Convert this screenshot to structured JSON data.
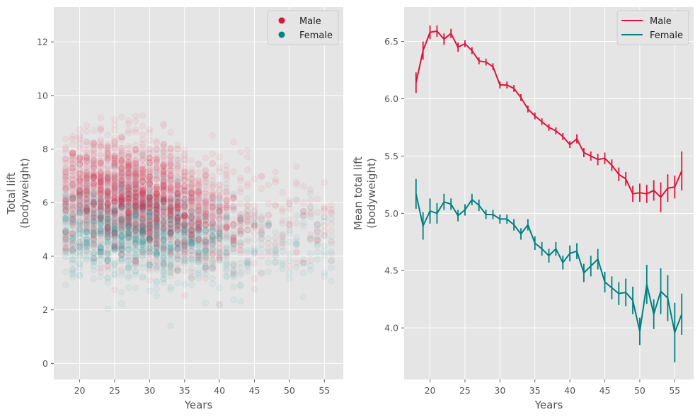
{
  "colors": {
    "male": "#dc143c",
    "female": "#008080",
    "panel_bg": "#e5e5e5",
    "grid": "#ffffff",
    "text": "#555555"
  },
  "chart_data": [
    {
      "type": "scatter",
      "xlabel": "Years",
      "ylabel_lines": [
        "Total lift",
        "(bodyweight)"
      ],
      "xlim": [
        16.3,
        57.7
      ],
      "ylim": [
        -0.6,
        13.3
      ],
      "xticks": [
        20,
        25,
        30,
        35,
        40,
        45,
        50,
        55
      ],
      "yticks": [
        0,
        2,
        4,
        6,
        8,
        10,
        12
      ],
      "grid": true,
      "legend": "top-right",
      "series": [
        {
          "name": "Male",
          "color": "#dc143c",
          "age_range": [
            18,
            56
          ],
          "approx_mean_by_age": [
            6.15,
            6.45,
            6.6,
            6.6,
            6.55,
            6.55,
            6.45,
            6.5,
            6.45,
            6.35,
            6.33,
            6.28,
            6.12,
            6.12,
            6.08,
            6.0,
            5.9,
            5.85,
            5.8,
            5.75,
            5.72,
            5.68,
            5.6,
            5.65,
            5.52,
            5.5,
            5.48,
            5.48,
            5.42,
            5.35,
            5.3,
            5.17,
            5.18,
            5.17,
            5.2,
            5.15,
            5.22,
            5.23,
            5.37
          ],
          "spread_sd": 1.0
        },
        {
          "name": "Female",
          "color": "#008080",
          "age_range": [
            18,
            56
          ],
          "approx_mean_by_age": [
            5.17,
            4.9,
            5.02,
            5.0,
            5.1,
            5.08,
            4.98,
            5.03,
            5.12,
            5.07,
            4.99,
            4.99,
            4.95,
            4.95,
            4.9,
            4.82,
            4.9,
            4.73,
            4.7,
            4.63,
            4.68,
            4.57,
            4.65,
            4.67,
            4.48,
            4.54,
            4.6,
            4.4,
            4.35,
            4.3,
            4.32,
            4.25,
            3.98,
            4.38,
            4.12,
            4.32,
            4.27,
            3.97,
            4.12
          ],
          "spread_sd": 0.85
        }
      ]
    },
    {
      "type": "line",
      "xlabel": "Years",
      "ylabel_lines": [
        "Mean total lift",
        "(bodyweight)"
      ],
      "xlim": [
        16.3,
        57.7
      ],
      "ylim": [
        3.55,
        6.8
      ],
      "xticks": [
        20,
        25,
        30,
        35,
        40,
        45,
        50,
        55
      ],
      "yticks": [
        4.0,
        4.5,
        5.0,
        5.5,
        6.0,
        6.5
      ],
      "ytick_labels": [
        "4.0",
        "4.5",
        "5.0",
        "5.5",
        "6.0",
        "6.5"
      ],
      "grid": true,
      "legend": "top-right",
      "x": [
        18,
        19,
        20,
        21,
        22,
        23,
        24,
        25,
        26,
        27,
        28,
        29,
        30,
        31,
        32,
        33,
        34,
        35,
        36,
        37,
        38,
        39,
        40,
        41,
        42,
        43,
        44,
        45,
        46,
        47,
        48,
        49,
        50,
        51,
        52,
        53,
        54,
        55,
        56
      ],
      "series": [
        {
          "name": "Male",
          "color": "#dc143c",
          "values": [
            6.14,
            6.42,
            6.58,
            6.59,
            6.52,
            6.57,
            6.45,
            6.48,
            6.42,
            6.33,
            6.32,
            6.28,
            6.12,
            6.12,
            6.09,
            6.01,
            5.91,
            5.85,
            5.8,
            5.75,
            5.72,
            5.67,
            5.6,
            5.65,
            5.53,
            5.5,
            5.47,
            5.48,
            5.42,
            5.34,
            5.3,
            5.17,
            5.18,
            5.17,
            5.2,
            5.14,
            5.22,
            5.23,
            5.37
          ],
          "errors": [
            0.09,
            0.08,
            0.06,
            0.05,
            0.05,
            0.04,
            0.04,
            0.03,
            0.03,
            0.03,
            0.03,
            0.03,
            0.03,
            0.03,
            0.03,
            0.03,
            0.03,
            0.03,
            0.03,
            0.03,
            0.03,
            0.03,
            0.03,
            0.04,
            0.04,
            0.04,
            0.05,
            0.05,
            0.05,
            0.06,
            0.06,
            0.07,
            0.08,
            0.08,
            0.09,
            0.13,
            0.12,
            0.1,
            0.17
          ]
        },
        {
          "name": "Female",
          "color": "#008080",
          "values": [
            5.17,
            4.89,
            5.02,
            5.0,
            5.1,
            5.08,
            4.98,
            5.03,
            5.12,
            5.07,
            4.99,
            4.99,
            4.95,
            4.95,
            4.9,
            4.82,
            4.9,
            4.74,
            4.69,
            4.63,
            4.69,
            4.57,
            4.65,
            4.67,
            4.48,
            4.54,
            4.6,
            4.4,
            4.35,
            4.3,
            4.31,
            4.24,
            3.97,
            4.38,
            4.12,
            4.32,
            4.26,
            3.96,
            4.12
          ],
          "errors": [
            0.13,
            0.12,
            0.11,
            0.09,
            0.07,
            0.05,
            0.05,
            0.05,
            0.05,
            0.05,
            0.04,
            0.04,
            0.04,
            0.04,
            0.05,
            0.05,
            0.05,
            0.06,
            0.06,
            0.06,
            0.06,
            0.06,
            0.07,
            0.07,
            0.08,
            0.09,
            0.09,
            0.09,
            0.1,
            0.1,
            0.12,
            0.12,
            0.12,
            0.17,
            0.13,
            0.2,
            0.2,
            0.26,
            0.18
          ]
        }
      ]
    }
  ]
}
